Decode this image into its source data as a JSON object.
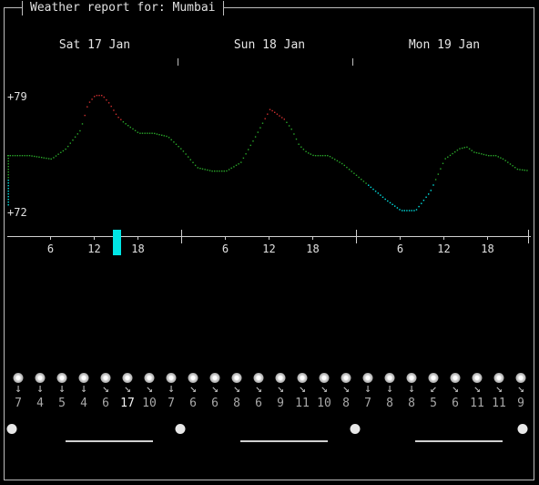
{
  "title": "Weather report for: Mumbai",
  "days": [
    {
      "label": "Sat 17 Jan"
    },
    {
      "label": "Sun 18 Jan"
    },
    {
      "label": "Mon 19 Jan"
    }
  ],
  "hour_ticks": [
    "6",
    "12",
    "18"
  ],
  "chart_data": {
    "type": "line",
    "y_axis_labels": [
      "+79",
      "+72"
    ],
    "ylim": [
      72,
      79
    ],
    "x_unit": "hours since Sat 17 Jan 00:00",
    "temperature_series": {
      "x": [
        0,
        3,
        6,
        8,
        10,
        11,
        12,
        13,
        14,
        15,
        16,
        18,
        20,
        22,
        24,
        26,
        28,
        30,
        32,
        34,
        36,
        38,
        39,
        40,
        41,
        42,
        44,
        46,
        48,
        50,
        52,
        54,
        56,
        58,
        60,
        62,
        63,
        64,
        66,
        67,
        68,
        70,
        72
      ],
      "y": [
        75.5,
        75.5,
        75.3,
        75.9,
        77.0,
        78.5,
        79.0,
        79.0,
        78.5,
        77.8,
        77.4,
        76.8,
        76.8,
        76.6,
        75.8,
        74.8,
        74.6,
        74.6,
        75.1,
        76.6,
        78.2,
        77.6,
        77.0,
        76.1,
        75.7,
        75.5,
        75.5,
        75.0,
        74.3,
        73.6,
        72.9,
        72.3,
        72.3,
        73.4,
        75.3,
        75.9,
        76.0,
        75.7,
        75.5,
        75.5,
        75.3,
        74.7,
        74.6
      ]
    },
    "color_scale": {
      "cold": "#00e5e5",
      "mild": "#2aa82a",
      "warm": "#d03030"
    }
  },
  "current_time_marker": {
    "hour": 15,
    "color": "#00e5e5"
  },
  "hourly": [
    {
      "wind_arrow": "↓",
      "wind_speed": "7"
    },
    {
      "wind_arrow": "↓",
      "wind_speed": "4"
    },
    {
      "wind_arrow": "↓",
      "wind_speed": "5"
    },
    {
      "wind_arrow": "↓",
      "wind_speed": "4"
    },
    {
      "wind_arrow": "↘",
      "wind_speed": "6"
    },
    {
      "wind_arrow": "↘",
      "wind_speed": "17",
      "highlight": true
    },
    {
      "wind_arrow": "↘",
      "wind_speed": "10"
    },
    {
      "wind_arrow": "↓",
      "wind_speed": "7"
    },
    {
      "wind_arrow": "↘",
      "wind_speed": "6"
    },
    {
      "wind_arrow": "↘",
      "wind_speed": "6"
    },
    {
      "wind_arrow": "↘",
      "wind_speed": "8"
    },
    {
      "wind_arrow": "↘",
      "wind_speed": "6"
    },
    {
      "wind_arrow": "↘",
      "wind_speed": "9"
    },
    {
      "wind_arrow": "↘",
      "wind_speed": "11"
    },
    {
      "wind_arrow": "↘",
      "wind_speed": "10"
    },
    {
      "wind_arrow": "↘",
      "wind_speed": "8"
    },
    {
      "wind_arrow": "↓",
      "wind_speed": "7"
    },
    {
      "wind_arrow": "↓",
      "wind_speed": "8"
    },
    {
      "wind_arrow": "↓",
      "wind_speed": "8"
    },
    {
      "wind_arrow": "↙",
      "wind_speed": "5"
    },
    {
      "wind_arrow": "↘",
      "wind_speed": "6"
    },
    {
      "wind_arrow": "↘",
      "wind_speed": "11"
    },
    {
      "wind_arrow": "↘",
      "wind_speed": "11"
    },
    {
      "wind_arrow": "↘",
      "wind_speed": "9"
    }
  ],
  "icons": {
    "condition": "sun-icon",
    "moon": "moon-icon"
  }
}
